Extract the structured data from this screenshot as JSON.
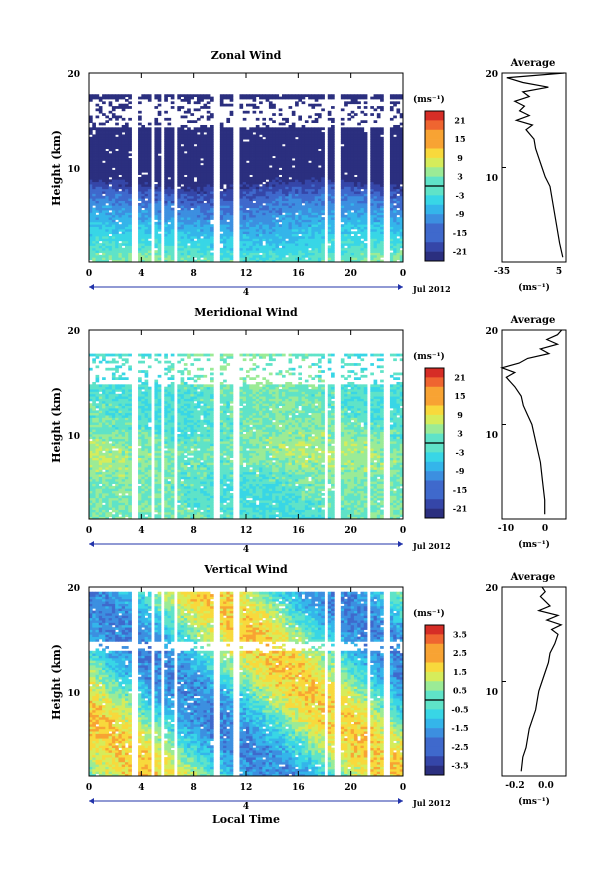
{
  "figure": {
    "month_label": "Jul 2012",
    "day_label": "4",
    "x_label": "Local Time",
    "y_label": "Height (km)",
    "unit_label": "(ms⁻¹)",
    "avg_title": "Average",
    "x_ticks": [
      "0",
      "4",
      "8",
      "12",
      "16",
      "20",
      "0"
    ],
    "y_ticks": [
      "10",
      "20"
    ]
  },
  "chart_data": [
    {
      "type": "heatmap",
      "title": "Zonal Wind",
      "xlabel": "Local Time",
      "ylabel": "Height (km)",
      "xlim": [
        0,
        24
      ],
      "ylim": [
        0,
        20
      ],
      "colorbar": {
        "label": "(ms⁻¹)",
        "ticks": [
          "21",
          "15",
          "9",
          "3",
          "-3",
          "-9",
          "-15",
          "-21"
        ],
        "min": -24,
        "max": 24
      },
      "field": {
        "base": 1,
        "slope": -2.3,
        "jet_height": 11,
        "jet_strength": -11,
        "noise": 4.5,
        "upper_limit": 17.8,
        "upper_pattern": "gappy",
        "upper_bias": -12
      },
      "average_profile": {
        "title": "Average",
        "xlabel": "(ms⁻¹)",
        "xlim": [
          -35,
          5
        ],
        "xticks": [
          "-35",
          "5"
        ],
        "heights": [
          0.5,
          2,
          4,
          6,
          8,
          9,
          10,
          11,
          12,
          13,
          14,
          14.5,
          15,
          15.5,
          16,
          16.5,
          17,
          17.5,
          18,
          18.5,
          19,
          19.5,
          20
        ],
        "values": [
          3,
          1,
          -1,
          -3,
          -5,
          -8,
          -10,
          -12,
          -14,
          -15,
          -20,
          -16,
          -26,
          -18,
          -24,
          -21,
          -27,
          -18,
          -22,
          -6,
          -22,
          -32,
          4
        ]
      }
    },
    {
      "type": "heatmap",
      "title": "Meridional Wind",
      "xlabel": "Local Time",
      "ylabel": "Height (km)",
      "xlim": [
        0,
        24
      ],
      "ylim": [
        0,
        20
      ],
      "colorbar": {
        "label": "(ms⁻¹)",
        "ticks": [
          "21",
          "15",
          "9",
          "3",
          "-3",
          "-9",
          "-15",
          "-21"
        ],
        "min": -24,
        "max": 24
      },
      "field": {
        "base": 0,
        "slope": 0,
        "jet_height": 7,
        "jet_strength": 3,
        "noise": 6,
        "upper_limit": 17.5,
        "upper_pattern": "gappy",
        "upper_bias": 0
      },
      "average_profile": {
        "title": "Average",
        "xlabel": "(ms⁻¹)",
        "xlim": [
          -10,
          5
        ],
        "xticks": [
          "-10",
          "0"
        ],
        "heights": [
          0.5,
          2,
          4,
          6,
          8,
          10,
          11,
          12,
          13,
          14,
          14.5,
          15,
          15.5,
          16,
          16.5,
          17,
          17.5,
          18,
          18.5,
          19,
          19.5,
          20
        ],
        "values": [
          0,
          0,
          -0.5,
          -1,
          -2,
          -3,
          -4,
          -5,
          -5.5,
          -7,
          -8,
          -9,
          -7,
          -10,
          -6,
          -4,
          1,
          -1,
          3,
          0.5,
          3,
          4
        ]
      }
    },
    {
      "type": "heatmap",
      "title": "Vertical Wind",
      "xlabel": "Local Time",
      "ylabel": "Height (km)",
      "xlim": [
        0,
        24
      ],
      "ylim": [
        0,
        20
      ],
      "colorbar": {
        "label": "(ms⁻¹)",
        "ticks": [
          "3.5",
          "2.5",
          "1.5",
          "0.5",
          "-0.5",
          "-1.5",
          "-2.5",
          "-3.5"
        ],
        "min": -4,
        "max": 4
      },
      "field": {
        "base": 0,
        "slope": 0,
        "jet_height": 10,
        "jet_strength": 0,
        "noise": 1.2,
        "upper_limit": 19.5,
        "upper_pattern": "band",
        "upper_bias": 0
      },
      "average_profile": {
        "title": "Average",
        "xlabel": "(ms⁻¹)",
        "xlim": [
          -0.25,
          0.15
        ],
        "xticks": [
          "-0.2",
          "0.0"
        ],
        "heights": [
          0.5,
          2,
          3,
          4,
          5,
          6,
          7,
          8,
          9,
          10,
          11,
          12,
          13,
          14,
          15,
          15.5,
          16,
          16.5,
          17,
          17.5,
          18,
          18.5,
          19,
          19.5,
          20
        ],
        "values": [
          -0.13,
          -0.12,
          -0.1,
          -0.09,
          -0.08,
          -0.06,
          -0.04,
          -0.03,
          -0.02,
          0.0,
          0.02,
          0.04,
          0.05,
          0.08,
          0.1,
          0.06,
          0.12,
          0.03,
          0.1,
          -0.02,
          0.05,
          0.02,
          -0.01,
          0.02,
          0.0
        ]
      }
    }
  ]
}
